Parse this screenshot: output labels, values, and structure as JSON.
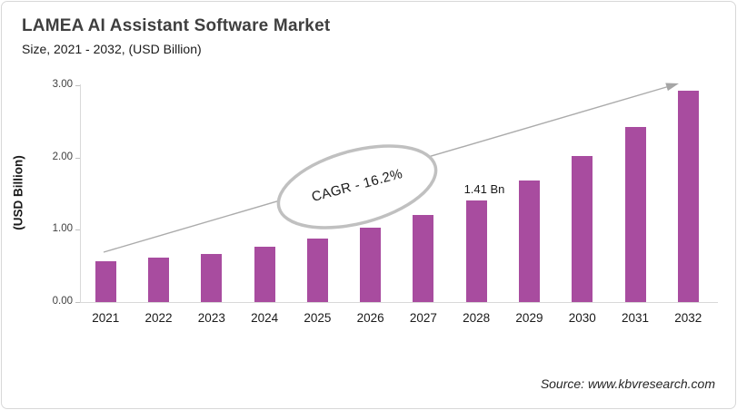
{
  "header": {
    "title": "LAMEA AI Assistant Software Market",
    "subtitle": "Size, 2021 - 2032, (USD Billion)"
  },
  "annotations": {
    "cagr_label": "CAGR - 16.2%",
    "value_label": "1.41 Bn",
    "value_label_category": "2028"
  },
  "footer": {
    "source": "Source: www.kbvresearch.com"
  },
  "chart_data": {
    "type": "bar",
    "title": "LAMEA AI Assistant Software Market Size, 2021 - 2032, (USD Billion)",
    "categories": [
      "2021",
      "2022",
      "2023",
      "2024",
      "2025",
      "2026",
      "2027",
      "2028",
      "2029",
      "2030",
      "2031",
      "2032"
    ],
    "values": [
      0.56,
      0.62,
      0.67,
      0.77,
      0.88,
      1.03,
      1.21,
      1.41,
      1.68,
      2.02,
      2.42,
      2.92
    ],
    "xlabel": "",
    "ylabel": "(USD Billion)",
    "yticks": [
      "0.00",
      "1.00",
      "2.00",
      "3.00"
    ],
    "ylim": [
      0,
      3
    ],
    "grid": false,
    "legend": "none",
    "bar_color": "#a84c9f",
    "trend_arrow_color": "#a9a9a9",
    "ellipse_stroke_color": "#c0c0c0",
    "annotations_on_chart": [
      {
        "text": "CAGR - 16.2%",
        "style": "rotated-ellipse"
      },
      {
        "text": "1.41 Bn",
        "category": "2028"
      }
    ]
  }
}
